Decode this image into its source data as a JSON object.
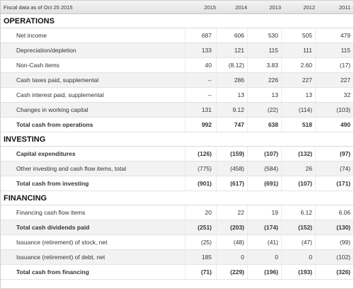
{
  "header": {
    "label": "Fiscal data as of Oct 25 2015",
    "years": [
      "2015",
      "2014",
      "2013",
      "2012",
      "2011"
    ]
  },
  "sections": [
    {
      "title": "OPERATIONS",
      "rows": [
        {
          "label": "Net income",
          "values": [
            "687",
            "606",
            "530",
            "505",
            "479"
          ],
          "bold": false
        },
        {
          "label": "Depreciation/depletion",
          "values": [
            "133",
            "121",
            "115",
            "111",
            "115"
          ],
          "bold": false
        },
        {
          "label": "Non-Cash items",
          "values": [
            "40",
            "(8.12)",
            "3.83",
            "2.60",
            "(17)"
          ],
          "bold": false
        },
        {
          "label": "Cash taxes paid, supplemental",
          "values": [
            "--",
            "286",
            "226",
            "227",
            "227"
          ],
          "bold": false
        },
        {
          "label": "Cash interest paid, supplemental",
          "values": [
            "--",
            "13",
            "13",
            "13",
            "32"
          ],
          "bold": false
        },
        {
          "label": "Changes in working capital",
          "values": [
            "131",
            "9.12",
            "(22)",
            "(114)",
            "(103)"
          ],
          "bold": false
        },
        {
          "label": "Total cash from operations",
          "values": [
            "992",
            "747",
            "638",
            "518",
            "490"
          ],
          "bold": true
        }
      ]
    },
    {
      "title": "INVESTING",
      "rows": [
        {
          "label": "Capital expenditures",
          "values": [
            "(126)",
            "(159)",
            "(107)",
            "(132)",
            "(97)"
          ],
          "bold": true
        },
        {
          "label": "Other investing and cash flow items, total",
          "values": [
            "(775)",
            "(458)",
            "(584)",
            "26",
            "(74)"
          ],
          "bold": false
        },
        {
          "label": "Total cash from investing",
          "values": [
            "(901)",
            "(617)",
            "(691)",
            "(107)",
            "(171)"
          ],
          "bold": true
        }
      ]
    },
    {
      "title": "FINANCING",
      "rows": [
        {
          "label": "Financing cash flow items",
          "values": [
            "20",
            "22",
            "19",
            "6.12",
            "6.06"
          ],
          "bold": false
        },
        {
          "label": "Total cash dividends paid",
          "values": [
            "(251)",
            "(203)",
            "(174)",
            "(152)",
            "(130)"
          ],
          "bold": true
        },
        {
          "label": "Issuance (retirement) of stock, net",
          "values": [
            "(25)",
            "(48)",
            "(41)",
            "(47)",
            "(99)"
          ],
          "bold": false
        },
        {
          "label": "Issuance (retirement) of debt, net",
          "values": [
            "185",
            "0",
            "0",
            "0",
            "(102)"
          ],
          "bold": false
        },
        {
          "label": "Total cash from financing",
          "values": [
            "(71)",
            "(229)",
            "(196)",
            "(193)",
            "(326)"
          ],
          "bold": true
        }
      ]
    }
  ]
}
